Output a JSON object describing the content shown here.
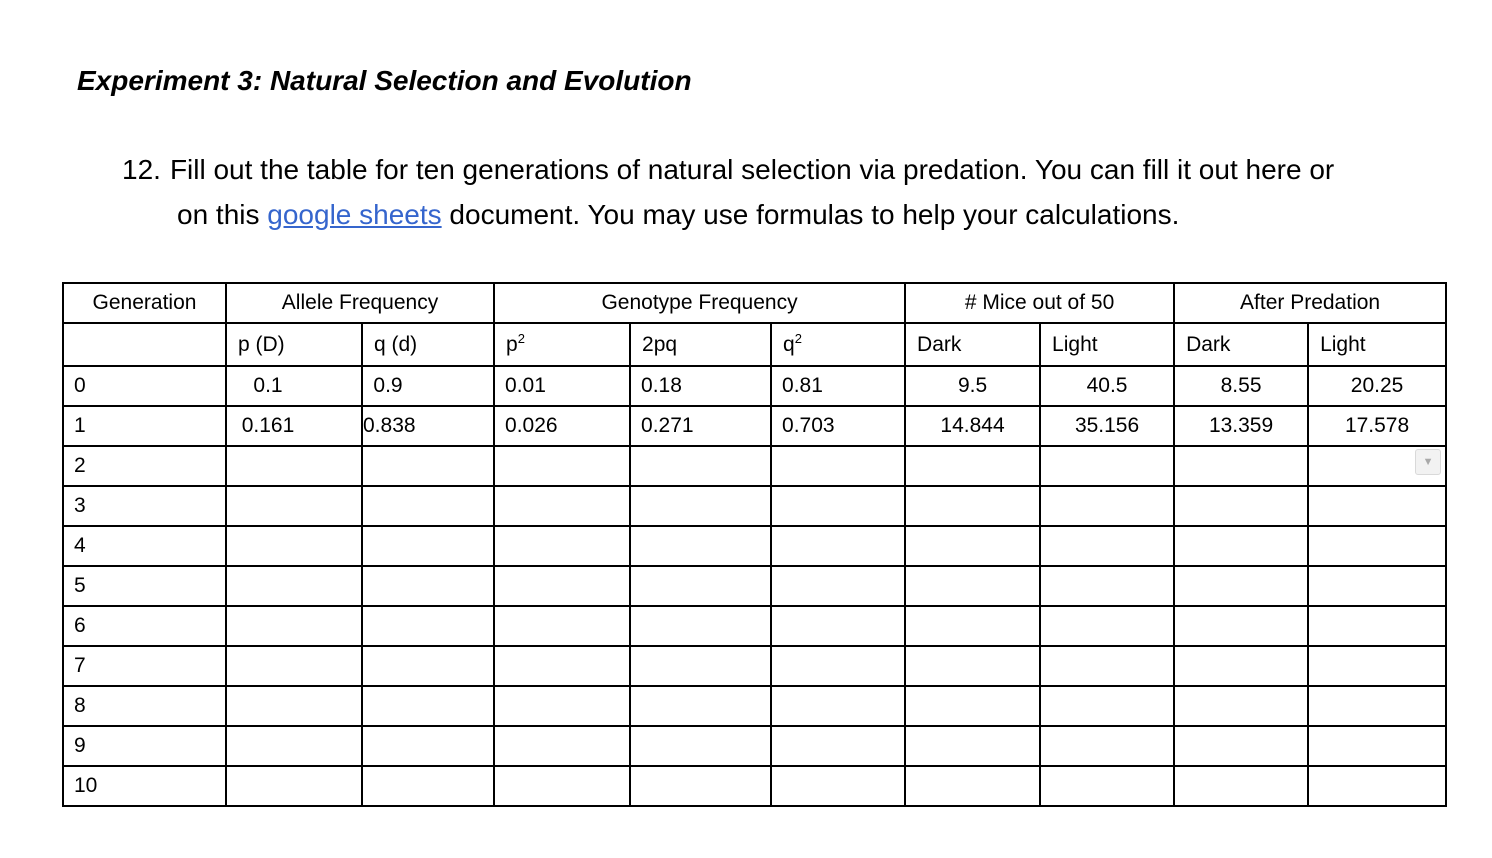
{
  "document": {
    "title": "Experiment 3: Natural Selection and Evolution"
  },
  "instruction": {
    "number": "12.",
    "line1": "Fill out the table for ten generations of natural selection via predation. You can fill it out here or",
    "line2_prefix": "on this ",
    "link_text": "google sheets",
    "line2_suffix": " document. You may use formulas to help your calculations."
  },
  "table": {
    "group_headers": [
      {
        "label": "Generation",
        "colspan": 1
      },
      {
        "label": "Allele Frequency",
        "colspan": 2
      },
      {
        "label": "Genotype Frequency",
        "colspan": 3
      },
      {
        "label": "# Mice out of 50",
        "colspan": 2
      },
      {
        "label": "After Predation",
        "colspan": 2
      }
    ],
    "sub_headers": [
      {
        "base": ""
      },
      {
        "base": "p (D)"
      },
      {
        "base": "q (d)"
      },
      {
        "base": "p",
        "sup": "2"
      },
      {
        "base": "2pq"
      },
      {
        "base": "q",
        "sup": "2"
      },
      {
        "base": "Dark"
      },
      {
        "base": "Light"
      },
      {
        "base": "Dark"
      },
      {
        "base": "Light"
      }
    ],
    "rows": [
      {
        "generation": "0",
        "values": [
          "0.1",
          "0.9",
          "0.01",
          "0.18",
          "0.81",
          "9.5",
          "40.5",
          "8.55",
          "20.25"
        ],
        "has_dropdown": false
      },
      {
        "generation": "1",
        "values": [
          "0.161",
          "0.838",
          "0.026",
          "0.271",
          "0.703",
          "14.844",
          "35.156",
          "13.359",
          "17.578"
        ],
        "has_dropdown": false
      },
      {
        "generation": "2",
        "values": [
          "",
          "",
          "",
          "",
          "",
          "",
          "",
          "",
          ""
        ],
        "has_dropdown": true
      },
      {
        "generation": "3",
        "values": [
          "",
          "",
          "",
          "",
          "",
          "",
          "",
          "",
          ""
        ],
        "has_dropdown": false
      },
      {
        "generation": "4",
        "values": [
          "",
          "",
          "",
          "",
          "",
          "",
          "",
          "",
          ""
        ],
        "has_dropdown": false
      },
      {
        "generation": "5",
        "values": [
          "",
          "",
          "",
          "",
          "",
          "",
          "",
          "",
          ""
        ],
        "has_dropdown": false
      },
      {
        "generation": "6",
        "values": [
          "",
          "",
          "",
          "",
          "",
          "",
          "",
          "",
          ""
        ],
        "has_dropdown": false
      },
      {
        "generation": "7",
        "values": [
          "",
          "",
          "",
          "",
          "",
          "",
          "",
          "",
          ""
        ],
        "has_dropdown": false
      },
      {
        "generation": "8",
        "values": [
          "",
          "",
          "",
          "",
          "",
          "",
          "",
          "",
          ""
        ],
        "has_dropdown": false
      },
      {
        "generation": "9",
        "values": [
          "",
          "",
          "",
          "",
          "",
          "",
          "",
          "",
          ""
        ],
        "has_dropdown": false
      },
      {
        "generation": "10",
        "values": [
          "",
          "",
          "",
          "",
          "",
          "",
          "",
          "",
          ""
        ],
        "has_dropdown": false
      }
    ]
  },
  "icons": {
    "dropdown_arrow": "▼"
  },
  "colors": {
    "link": "#3565cd",
    "table_border": "#000000",
    "dropdown_bg": "#f2f2f2",
    "dropdown_border": "#d9d9d9",
    "dropdown_arrow": "#a9a9a9"
  }
}
